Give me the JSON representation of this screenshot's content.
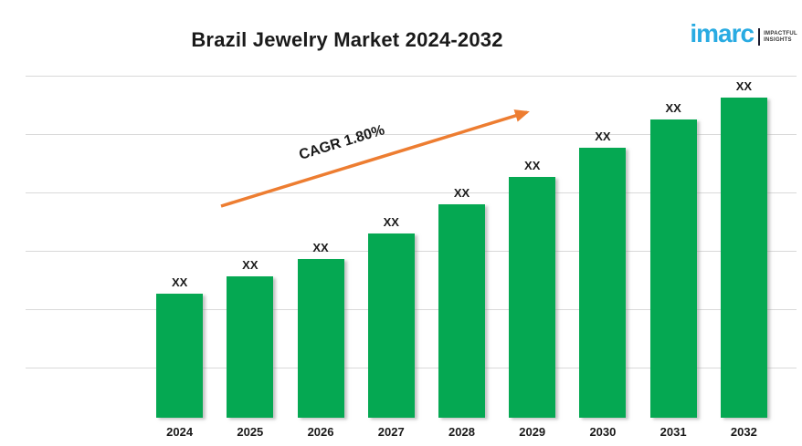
{
  "header": {
    "title": "Brazil Jewelry Market 2024-2032",
    "logo": {
      "brand": "imarc",
      "tagline_line1": "IMPACTFUL",
      "tagline_line2": "INSIGHTS",
      "brand_color": "#29ABE2"
    }
  },
  "annotation": {
    "cagr_label": "CAGR 1.80%",
    "arrow_color": "#ED7D31"
  },
  "chart_data": {
    "type": "bar",
    "title": "Brazil Jewelry Market 2024-2032",
    "categories": [
      "2024",
      "2025",
      "2026",
      "2027",
      "2028",
      "2029",
      "2030",
      "2031",
      "2032"
    ],
    "values_display": [
      "XX",
      "XX",
      "XX",
      "XX",
      "XX",
      "XX",
      "XX",
      "XX",
      "XX"
    ],
    "relative_heights": [
      0.363,
      0.413,
      0.464,
      0.539,
      0.624,
      0.704,
      0.789,
      0.872,
      0.936
    ],
    "xlabel": "",
    "ylabel": "",
    "y_axis_tick_labels_visible": false,
    "grid": true,
    "gridline_count": 6,
    "bar_color": "#05a852",
    "gridline_color": "#d9d9d9",
    "annotations": [
      {
        "type": "trend-arrow",
        "text": "CAGR 1.80%",
        "color": "#ED7D31"
      }
    ]
  }
}
